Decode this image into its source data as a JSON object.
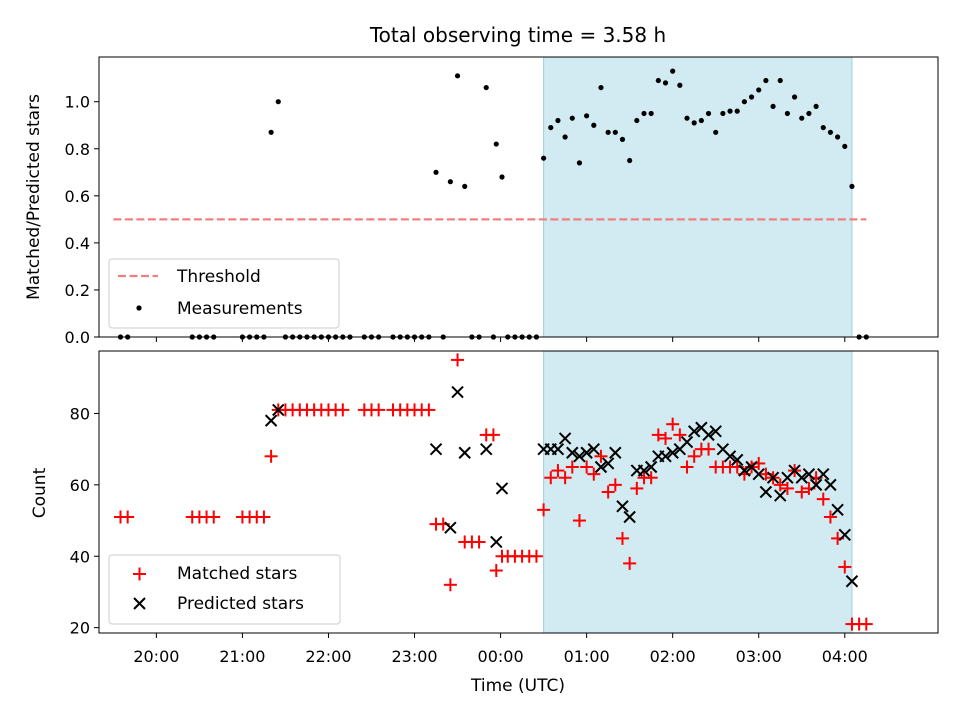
{
  "title": "Total observing time = 3.58 h",
  "colors": {
    "threshold": "#f08080",
    "measurement": "#000000",
    "matched": "#ff0000",
    "predicted": "#000000",
    "shade": "#add8e6"
  },
  "chart_data": [
    {
      "type": "scatter",
      "ylabel": "Matched/Predicted stars",
      "ylim": [
        0,
        1.19
      ],
      "xlim": [
        "19:20",
        "05:05"
      ],
      "shaded_span": [
        "00:30",
        "04:05"
      ],
      "yticks": [
        "0.0",
        "0.2",
        "0.4",
        "0.6",
        "0.8",
        "1.0"
      ],
      "legend": {
        "position": "lower-left",
        "entries": [
          "Threshold",
          "Measurements"
        ]
      },
      "threshold": {
        "name": "Threshold",
        "value": 0.5,
        "x_range": [
          "19:30",
          "04:15"
        ]
      },
      "series": [
        {
          "name": "Measurements",
          "points": [
            [
              "19:35",
              0
            ],
            [
              "19:40",
              0
            ],
            [
              "20:25",
              0
            ],
            [
              "20:30",
              0
            ],
            [
              "20:35",
              0
            ],
            [
              "20:40",
              0
            ],
            [
              "21:00",
              0
            ],
            [
              "21:05",
              0
            ],
            [
              "21:10",
              0
            ],
            [
              "21:15",
              0
            ],
            [
              "21:20",
              0.87
            ],
            [
              "21:25",
              1.0
            ],
            [
              "21:30",
              0
            ],
            [
              "21:35",
              0
            ],
            [
              "21:40",
              0
            ],
            [
              "21:45",
              0
            ],
            [
              "21:50",
              0
            ],
            [
              "21:55",
              0
            ],
            [
              "22:00",
              0
            ],
            [
              "22:05",
              0
            ],
            [
              "22:10",
              0
            ],
            [
              "22:15",
              0
            ],
            [
              "22:25",
              0
            ],
            [
              "22:30",
              0
            ],
            [
              "22:35",
              0
            ],
            [
              "22:45",
              0
            ],
            [
              "22:50",
              0
            ],
            [
              "22:55",
              0
            ],
            [
              "23:00",
              0
            ],
            [
              "23:05",
              0
            ],
            [
              "23:10",
              0
            ],
            [
              "23:15",
              0.7
            ],
            [
              "23:20",
              0
            ],
            [
              "23:25",
              0.66
            ],
            [
              "23:30",
              1.11
            ],
            [
              "23:35",
              0.64
            ],
            [
              "23:40",
              0
            ],
            [
              "23:45",
              0
            ],
            [
              "23:50",
              1.06
            ],
            [
              "23:55",
              0
            ],
            [
              "23:57",
              0.82
            ],
            [
              "00:01",
              0.68
            ],
            [
              "00:05",
              0
            ],
            [
              "00:10",
              0
            ],
            [
              "00:15",
              0
            ],
            [
              "00:20",
              0
            ],
            [
              "00:25",
              0
            ],
            [
              "00:30",
              0.76
            ],
            [
              "00:35",
              0.89
            ],
            [
              "00:40",
              0.92
            ],
            [
              "00:45",
              0.85
            ],
            [
              "00:50",
              0.93
            ],
            [
              "00:55",
              0.74
            ],
            [
              "01:00",
              0.94
            ],
            [
              "01:05",
              0.9
            ],
            [
              "01:10",
              1.06
            ],
            [
              "01:15",
              0.87
            ],
            [
              "01:20",
              0.87
            ],
            [
              "01:25",
              0.84
            ],
            [
              "01:30",
              0.75
            ],
            [
              "01:35",
              0.92
            ],
            [
              "01:40",
              0.95
            ],
            [
              "01:45",
              0.95
            ],
            [
              "01:50",
              1.09
            ],
            [
              "01:55",
              1.08
            ],
            [
              "02:00",
              1.13
            ],
            [
              "02:05",
              1.07
            ],
            [
              "02:10",
              0.93
            ],
            [
              "02:15",
              0.91
            ],
            [
              "02:20",
              0.92
            ],
            [
              "02:25",
              0.95
            ],
            [
              "02:30",
              0.87
            ],
            [
              "02:35",
              0.95
            ],
            [
              "02:40",
              0.96
            ],
            [
              "02:45",
              0.96
            ],
            [
              "02:50",
              1.0
            ],
            [
              "02:55",
              1.02
            ],
            [
              "03:00",
              1.05
            ],
            [
              "03:05",
              1.09
            ],
            [
              "03:10",
              0.98
            ],
            [
              "03:15",
              1.09
            ],
            [
              "03:20",
              0.95
            ],
            [
              "03:25",
              1.02
            ],
            [
              "03:30",
              0.93
            ],
            [
              "03:35",
              0.95
            ],
            [
              "03:40",
              0.98
            ],
            [
              "03:45",
              0.89
            ],
            [
              "03:50",
              0.87
            ],
            [
              "03:55",
              0.85
            ],
            [
              "04:00",
              0.81
            ],
            [
              "04:05",
              0.64
            ],
            [
              "04:10",
              0
            ],
            [
              "04:15",
              0
            ]
          ]
        }
      ]
    },
    {
      "type": "scatter",
      "xlabel": "Time (UTC)",
      "ylabel": "Count",
      "ylim": [
        18.5,
        97.5
      ],
      "xlim": [
        "19:20",
        "05:05"
      ],
      "shaded_span": [
        "00:30",
        "04:05"
      ],
      "yticks": [
        "20",
        "40",
        "60",
        "80"
      ],
      "xticks": [
        "20:00",
        "21:00",
        "22:00",
        "23:00",
        "00:00",
        "01:00",
        "02:00",
        "03:00",
        "04:00"
      ],
      "legend": {
        "position": "lower-left",
        "entries": [
          "Matched stars",
          "Predicted stars"
        ]
      },
      "series": [
        {
          "name": "Matched stars",
          "marker": "+",
          "points": [
            [
              "19:35",
              51
            ],
            [
              "19:40",
              51
            ],
            [
              "20:25",
              51
            ],
            [
              "20:30",
              51
            ],
            [
              "20:35",
              51
            ],
            [
              "20:40",
              51
            ],
            [
              "21:00",
              51
            ],
            [
              "21:05",
              51
            ],
            [
              "21:10",
              51
            ],
            [
              "21:15",
              51
            ],
            [
              "21:20",
              68
            ],
            [
              "21:25",
              81
            ],
            [
              "21:30",
              81
            ],
            [
              "21:35",
              81
            ],
            [
              "21:40",
              81
            ],
            [
              "21:45",
              81
            ],
            [
              "21:50",
              81
            ],
            [
              "21:55",
              81
            ],
            [
              "22:00",
              81
            ],
            [
              "22:05",
              81
            ],
            [
              "22:10",
              81
            ],
            [
              "22:25",
              81
            ],
            [
              "22:30",
              81
            ],
            [
              "22:35",
              81
            ],
            [
              "22:45",
              81
            ],
            [
              "22:50",
              81
            ],
            [
              "22:55",
              81
            ],
            [
              "23:00",
              81
            ],
            [
              "23:05",
              81
            ],
            [
              "23:10",
              81
            ],
            [
              "23:15",
              49
            ],
            [
              "23:20",
              49
            ],
            [
              "23:25",
              32
            ],
            [
              "23:30",
              95
            ],
            [
              "23:35",
              44
            ],
            [
              "23:40",
              44
            ],
            [
              "23:45",
              44
            ],
            [
              "23:50",
              74
            ],
            [
              "23:55",
              74
            ],
            [
              "23:57",
              36
            ],
            [
              "00:01",
              40
            ],
            [
              "00:05",
              40
            ],
            [
              "00:10",
              40
            ],
            [
              "00:15",
              40
            ],
            [
              "00:20",
              40
            ],
            [
              "00:25",
              40
            ],
            [
              "00:30",
              53
            ],
            [
              "00:35",
              62
            ],
            [
              "00:40",
              64
            ],
            [
              "00:45",
              62
            ],
            [
              "00:50",
              65
            ],
            [
              "00:55",
              50
            ],
            [
              "01:00",
              65
            ],
            [
              "01:05",
              63
            ],
            [
              "01:10",
              68
            ],
            [
              "01:15",
              58
            ],
            [
              "01:20",
              60
            ],
            [
              "01:25",
              45
            ],
            [
              "01:30",
              38
            ],
            [
              "01:35",
              59
            ],
            [
              "01:40",
              62
            ],
            [
              "01:45",
              62
            ],
            [
              "01:50",
              74
            ],
            [
              "01:55",
              73
            ],
            [
              "02:00",
              77
            ],
            [
              "02:05",
              74
            ],
            [
              "02:10",
              65
            ],
            [
              "02:15",
              68
            ],
            [
              "02:20",
              70
            ],
            [
              "02:25",
              70
            ],
            [
              "02:30",
              65
            ],
            [
              "02:35",
              65
            ],
            [
              "02:40",
              65
            ],
            [
              "02:45",
              65
            ],
            [
              "02:50",
              63
            ],
            [
              "02:55",
              65
            ],
            [
              "03:00",
              66
            ],
            [
              "03:05",
              63
            ],
            [
              "03:10",
              62
            ],
            [
              "03:15",
              60
            ],
            [
              "03:20",
              59
            ],
            [
              "03:25",
              64
            ],
            [
              "03:30",
              58
            ],
            [
              "03:35",
              59
            ],
            [
              "03:40",
              62
            ],
            [
              "03:45",
              56
            ],
            [
              "03:50",
              51
            ],
            [
              "03:55",
              45
            ],
            [
              "04:00",
              37
            ],
            [
              "04:05",
              21
            ],
            [
              "04:10",
              21
            ],
            [
              "04:15",
              21
            ]
          ]
        },
        {
          "name": "Predicted stars",
          "marker": "x",
          "points": [
            [
              "21:20",
              78
            ],
            [
              "21:25",
              81
            ],
            [
              "23:15",
              70
            ],
            [
              "23:25",
              48
            ],
            [
              "23:30",
              86
            ],
            [
              "23:35",
              69
            ],
            [
              "23:50",
              70
            ],
            [
              "23:57",
              44
            ],
            [
              "00:01",
              59
            ],
            [
              "00:30",
              70
            ],
            [
              "00:35",
              70
            ],
            [
              "00:40",
              70
            ],
            [
              "00:45",
              73
            ],
            [
              "00:50",
              69
            ],
            [
              "00:55",
              68
            ],
            [
              "01:00",
              69
            ],
            [
              "01:05",
              70
            ],
            [
              "01:10",
              65
            ],
            [
              "01:15",
              66
            ],
            [
              "01:20",
              69
            ],
            [
              "01:25",
              54
            ],
            [
              "01:30",
              51
            ],
            [
              "01:35",
              64
            ],
            [
              "01:40",
              64
            ],
            [
              "01:45",
              65
            ],
            [
              "01:50",
              68
            ],
            [
              "01:55",
              68
            ],
            [
              "02:00",
              69
            ],
            [
              "02:05",
              70
            ],
            [
              "02:10",
              72
            ],
            [
              "02:15",
              75
            ],
            [
              "02:20",
              76
            ],
            [
              "02:25",
              74
            ],
            [
              "02:30",
              75
            ],
            [
              "02:35",
              70
            ],
            [
              "02:40",
              68
            ],
            [
              "02:45",
              67
            ],
            [
              "02:50",
              64
            ],
            [
              "02:55",
              65
            ],
            [
              "03:00",
              63
            ],
            [
              "03:05",
              58
            ],
            [
              "03:10",
              62
            ],
            [
              "03:15",
              57
            ],
            [
              "03:20",
              62
            ],
            [
              "03:25",
              64
            ],
            [
              "03:30",
              62
            ],
            [
              "03:35",
              63
            ],
            [
              "03:40",
              60
            ],
            [
              "03:45",
              63
            ],
            [
              "03:50",
              60
            ],
            [
              "03:55",
              53
            ],
            [
              "04:00",
              46
            ],
            [
              "04:05",
              33
            ]
          ]
        }
      ]
    }
  ]
}
